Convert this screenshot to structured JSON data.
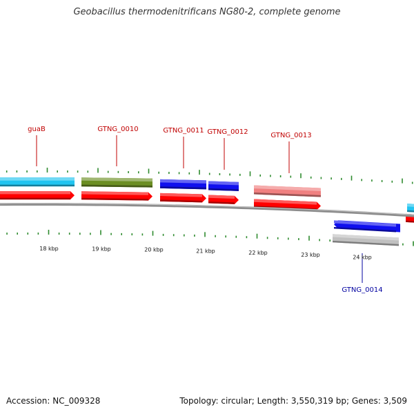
{
  "title": "Geobacillus thermodenitrificans NG80-2, complete genome",
  "footer": {
    "accession": "Accession: NC_009328",
    "summary": "Topology: circular; Length: 3,550,319 bp; Genes: 3,509"
  },
  "colors": {
    "backbone": "#8c8c8c",
    "tick": "#2e8b2e",
    "label_forward": "#c00000",
    "label_reverse": "#0000a0",
    "cds_red": "#ff0000",
    "cyan": "#22c4f0",
    "olive": "#6b8e23",
    "blue": "#1010ee",
    "pink": "#f08080",
    "gray": "#c0c0c0"
  },
  "kbp_ticks": [
    "18 kbp",
    "19 kbp",
    "20 kbp",
    "21 kbp",
    "22 kbp",
    "23 kbp",
    "24 kbp"
  ],
  "gene_labels": [
    {
      "name": "guaB",
      "strand": "forward"
    },
    {
      "name": "GTNG_0010",
      "strand": "forward"
    },
    {
      "name": "GTNG_0011",
      "strand": "forward"
    },
    {
      "name": "GTNG_0012",
      "strand": "forward"
    },
    {
      "name": "GTNG_0013",
      "strand": "forward"
    },
    {
      "name": "GTNG_0014",
      "strand": "reverse"
    }
  ]
}
